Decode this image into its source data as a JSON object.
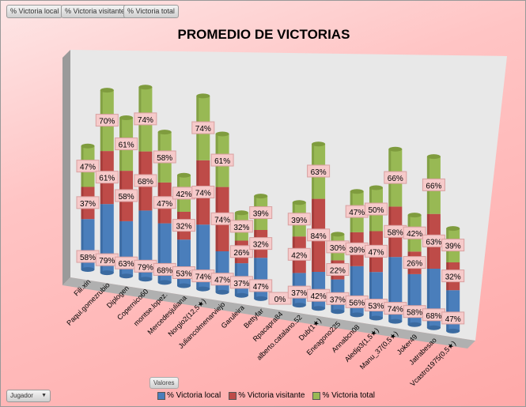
{
  "filter_buttons": [
    "% Victoria local",
    "% Victoria visitante",
    "% Victoria total"
  ],
  "valores_label": "Valores",
  "jugador_label": "Jugador",
  "colors": {
    "local": "#4a7ebb",
    "visitante": "#be4b48",
    "total": "#98b954"
  },
  "chart_data": {
    "type": "bar",
    "stacked": true,
    "three_d": true,
    "title": "PROMEDIO DE VICTORIAS",
    "legend_position": "bottom",
    "categories": [
      "Fili.xin",
      "Paqui.gomezrubio",
      "Diplogen",
      "Copernico60",
      "montse.lopez.",
      "Mercedesjuliana",
      "Norgio2(12,5★)",
      "Juliancolmenarviejo",
      "Garuleira",
      "Bettyfar",
      "Rpacapra84",
      "alberto.catalano.52",
      "Dub(1★)",
      "Eneagono225",
      "Annabcn08",
      "Aledip3(1,5★)",
      "Manu_37(0,5★)",
      "Joker49",
      "Jatrabesao",
      "Vcastro1975(0,5★)"
    ],
    "series": [
      {
        "name": "% Victoria local",
        "values": [
          58,
          79,
          63,
          79,
          68,
          53,
          74,
          47,
          37,
          47,
          0,
          37,
          42,
          37,
          56,
          53,
          74,
          58,
          68,
          47
        ]
      },
      {
        "name": "% Victoria visitante",
        "values": [
          37,
          61,
          58,
          68,
          47,
          32,
          74,
          74,
          26,
          32,
          0,
          42,
          84,
          22,
          39,
          47,
          58,
          26,
          63,
          32
        ]
      },
      {
        "name": "% Victoria total",
        "values": [
          47,
          70,
          61,
          74,
          58,
          42,
          74,
          61,
          32,
          39,
          0,
          39,
          63,
          30,
          47,
          50,
          66,
          42,
          66,
          39
        ]
      }
    ],
    "value_format": "percent"
  }
}
